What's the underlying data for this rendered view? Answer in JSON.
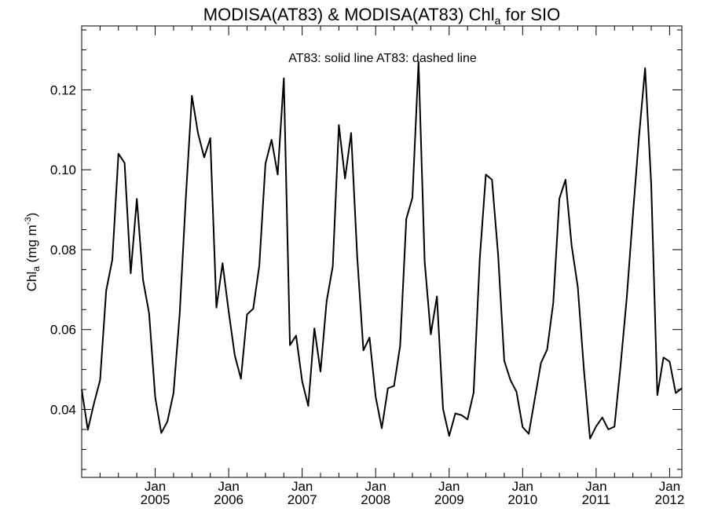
{
  "chart_data": {
    "type": "line",
    "title_main": "MODISA(AT83) & MODISA(AT83)  Chl",
    "title_sub": "a",
    "title_end": " for SIO",
    "annotation": "AT83: solid line   AT83: dashed line",
    "ylabel": {
      "main": "Chl",
      "sub": "a",
      "mid": " (mg m",
      "sup": "-3",
      "end": ")"
    },
    "xlabel": "",
    "ylim": [
      0.023,
      0.136
    ],
    "yticks": [
      0.04,
      0.06,
      0.08,
      0.1,
      0.12
    ],
    "ytick_labels": [
      "0.04",
      "0.06",
      "0.08",
      "0.10",
      "0.12"
    ],
    "x_range": [
      "2004-01",
      "2012-03"
    ],
    "xtick_labels": [
      {
        "month": "Jan",
        "year": "2005"
      },
      {
        "month": "Jan",
        "year": "2006"
      },
      {
        "month": "Jan",
        "year": "2007"
      },
      {
        "month": "Jan",
        "year": "2008"
      },
      {
        "month": "Jan",
        "year": "2009"
      },
      {
        "month": "Jan",
        "year": "2010"
      },
      {
        "month": "Jan",
        "year": "2011"
      },
      {
        "month": "Jan",
        "year": "2012"
      }
    ],
    "grid": false,
    "series": [
      {
        "line_style": "solid",
        "color": "#000000",
        "x": [
          "2004-01",
          "2004-02",
          "2004-03",
          "2004-04",
          "2004-05",
          "2004-06",
          "2004-07",
          "2004-08",
          "2004-09",
          "2004-10",
          "2004-11",
          "2004-12",
          "2005-01",
          "2005-02",
          "2005-03",
          "2005-04",
          "2005-05",
          "2005-06",
          "2005-07",
          "2005-08",
          "2005-09",
          "2005-10",
          "2005-11",
          "2005-12",
          "2006-01",
          "2006-02",
          "2006-03",
          "2006-04",
          "2006-05",
          "2006-06",
          "2006-07",
          "2006-08",
          "2006-09",
          "2006-10",
          "2006-11",
          "2006-12",
          "2007-01",
          "2007-02",
          "2007-03",
          "2007-04",
          "2007-05",
          "2007-06",
          "2007-07",
          "2007-08",
          "2007-09",
          "2007-10",
          "2007-11",
          "2007-12",
          "2008-01",
          "2008-02",
          "2008-03",
          "2008-04",
          "2008-05",
          "2008-06",
          "2008-07",
          "2008-08",
          "2008-09",
          "2008-10",
          "2008-11",
          "2008-12",
          "2009-01",
          "2009-02",
          "2009-03",
          "2009-04",
          "2009-05",
          "2009-06",
          "2009-07",
          "2009-08",
          "2009-09",
          "2009-10",
          "2009-11",
          "2009-12",
          "2010-01",
          "2010-02",
          "2010-03",
          "2010-04",
          "2010-05",
          "2010-06",
          "2010-07",
          "2010-08",
          "2010-09",
          "2010-10",
          "2010-11",
          "2010-12",
          "2011-01",
          "2011-02",
          "2011-03",
          "2011-04",
          "2011-05",
          "2011-06",
          "2011-07",
          "2011-08",
          "2011-09",
          "2011-10",
          "2011-11",
          "2011-12",
          "2012-01",
          "2012-02",
          "2012-03"
        ],
        "y": [
          0.045,
          0.0349,
          0.0415,
          0.0473,
          0.0698,
          0.0775,
          0.104,
          0.1017,
          0.0741,
          0.0927,
          0.0725,
          0.0641,
          0.043,
          0.0341,
          0.037,
          0.0441,
          0.0638,
          0.0928,
          0.1185,
          0.1091,
          0.1031,
          0.1079,
          0.0655,
          0.0766,
          0.0645,
          0.0535,
          0.0477,
          0.0638,
          0.0652,
          0.076,
          0.1015,
          0.1075,
          0.0988,
          0.1229,
          0.0561,
          0.0585,
          0.047,
          0.0409,
          0.0603,
          0.0495,
          0.0671,
          0.0758,
          0.1112,
          0.0978,
          0.1092,
          0.078,
          0.0548,
          0.058,
          0.0432,
          0.0353,
          0.0453,
          0.0459,
          0.056,
          0.0877,
          0.093,
          0.127,
          0.077,
          0.0588,
          0.0683,
          0.0401,
          0.0334,
          0.039,
          0.0386,
          0.0375,
          0.0442,
          0.0776,
          0.0988,
          0.0975,
          0.0787,
          0.0522,
          0.0474,
          0.0444,
          0.0356,
          0.0339,
          0.0428,
          0.0517,
          0.055,
          0.0667,
          0.0928,
          0.0975,
          0.081,
          0.0707,
          0.05,
          0.0327,
          0.0358,
          0.038,
          0.035,
          0.0357,
          0.051,
          0.0678,
          0.0885,
          0.1082,
          0.1254,
          0.0963,
          0.0436,
          0.053,
          0.052,
          0.0441,
          0.0453
        ]
      }
    ]
  }
}
